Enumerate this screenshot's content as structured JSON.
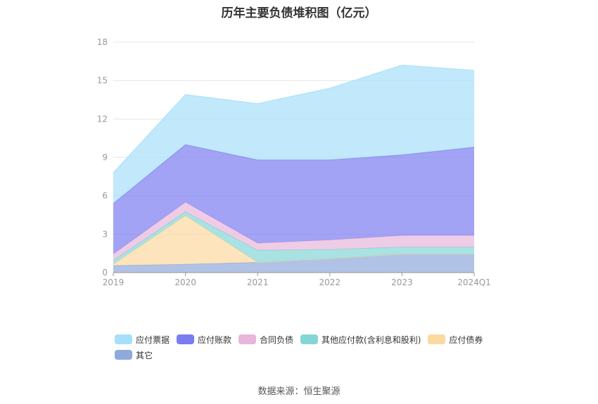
{
  "chart_data": {
    "type": "area",
    "stacked": true,
    "title": "历年主要负债堆积图（亿元）",
    "categories": [
      "2019",
      "2020",
      "2021",
      "2022",
      "2023",
      "2024Q1"
    ],
    "ylim": [
      0,
      18
    ],
    "yticks": [
      "0",
      "3",
      "6",
      "9",
      "12",
      "15",
      "18"
    ],
    "grid": true,
    "legend_position": "bottom",
    "series": [
      {
        "name": "其它",
        "color": "#8eaadb",
        "values": [
          0.55,
          0.65,
          0.8,
          1.1,
          1.45,
          1.45
        ]
      },
      {
        "name": "应付债券",
        "color": "#fcd9a0",
        "values": [
          0.1,
          3.8,
          0.0,
          0.0,
          0.0,
          0.0
        ]
      },
      {
        "name": "其他应付款(含利息和股利)",
        "color": "#84d6d6",
        "values": [
          0.3,
          0.3,
          0.95,
          0.7,
          0.55,
          0.55
        ]
      },
      {
        "name": "合同负债",
        "color": "#e8b6db",
        "values": [
          0.5,
          0.75,
          0.55,
          0.75,
          0.9,
          0.9
        ]
      },
      {
        "name": "应付账款",
        "color": "#7b7cf0",
        "values": [
          3.95,
          4.5,
          6.5,
          6.25,
          6.3,
          6.9
        ]
      },
      {
        "name": "应付票据",
        "color": "#a6dffa",
        "values": [
          2.4,
          3.9,
          4.4,
          5.6,
          7.0,
          6.0
        ]
      }
    ],
    "legend_order": [
      "应付票据",
      "应付账款",
      "合同负债",
      "其他应付款(含利息和股利)",
      "应付债券",
      "其它"
    ]
  },
  "source_note": "数据来源：恒生聚源"
}
